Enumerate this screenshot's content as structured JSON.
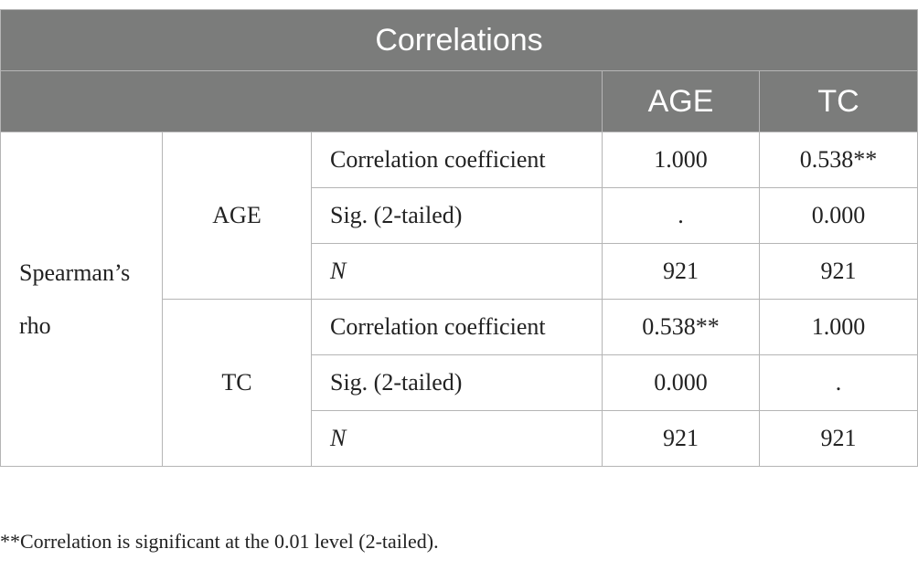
{
  "table": {
    "title": "Correlations",
    "columns": [
      "AGE",
      "TC"
    ],
    "group_label": "Spearman’s rho",
    "blocks": [
      {
        "variable": "AGE",
        "rows": [
          {
            "stat": "Correlation coefficient",
            "values": [
              "1.000",
              "0.538**"
            ]
          },
          {
            "stat": "Sig. (2-tailed)",
            "values": [
              ".",
              "0.000"
            ]
          },
          {
            "stat": "N",
            "values": [
              "921",
              "921"
            ]
          }
        ]
      },
      {
        "variable": "TC",
        "rows": [
          {
            "stat": "Correlation coefficient",
            "values": [
              "0.538**",
              "1.000"
            ]
          },
          {
            "stat": "Sig. (2-tailed)",
            "values": [
              "0.000",
              "."
            ]
          },
          {
            "stat": "N",
            "values": [
              "921",
              "921"
            ]
          }
        ]
      }
    ]
  },
  "footnote": "**Correlation is significant at the 0.01 level (2-tailed)."
}
